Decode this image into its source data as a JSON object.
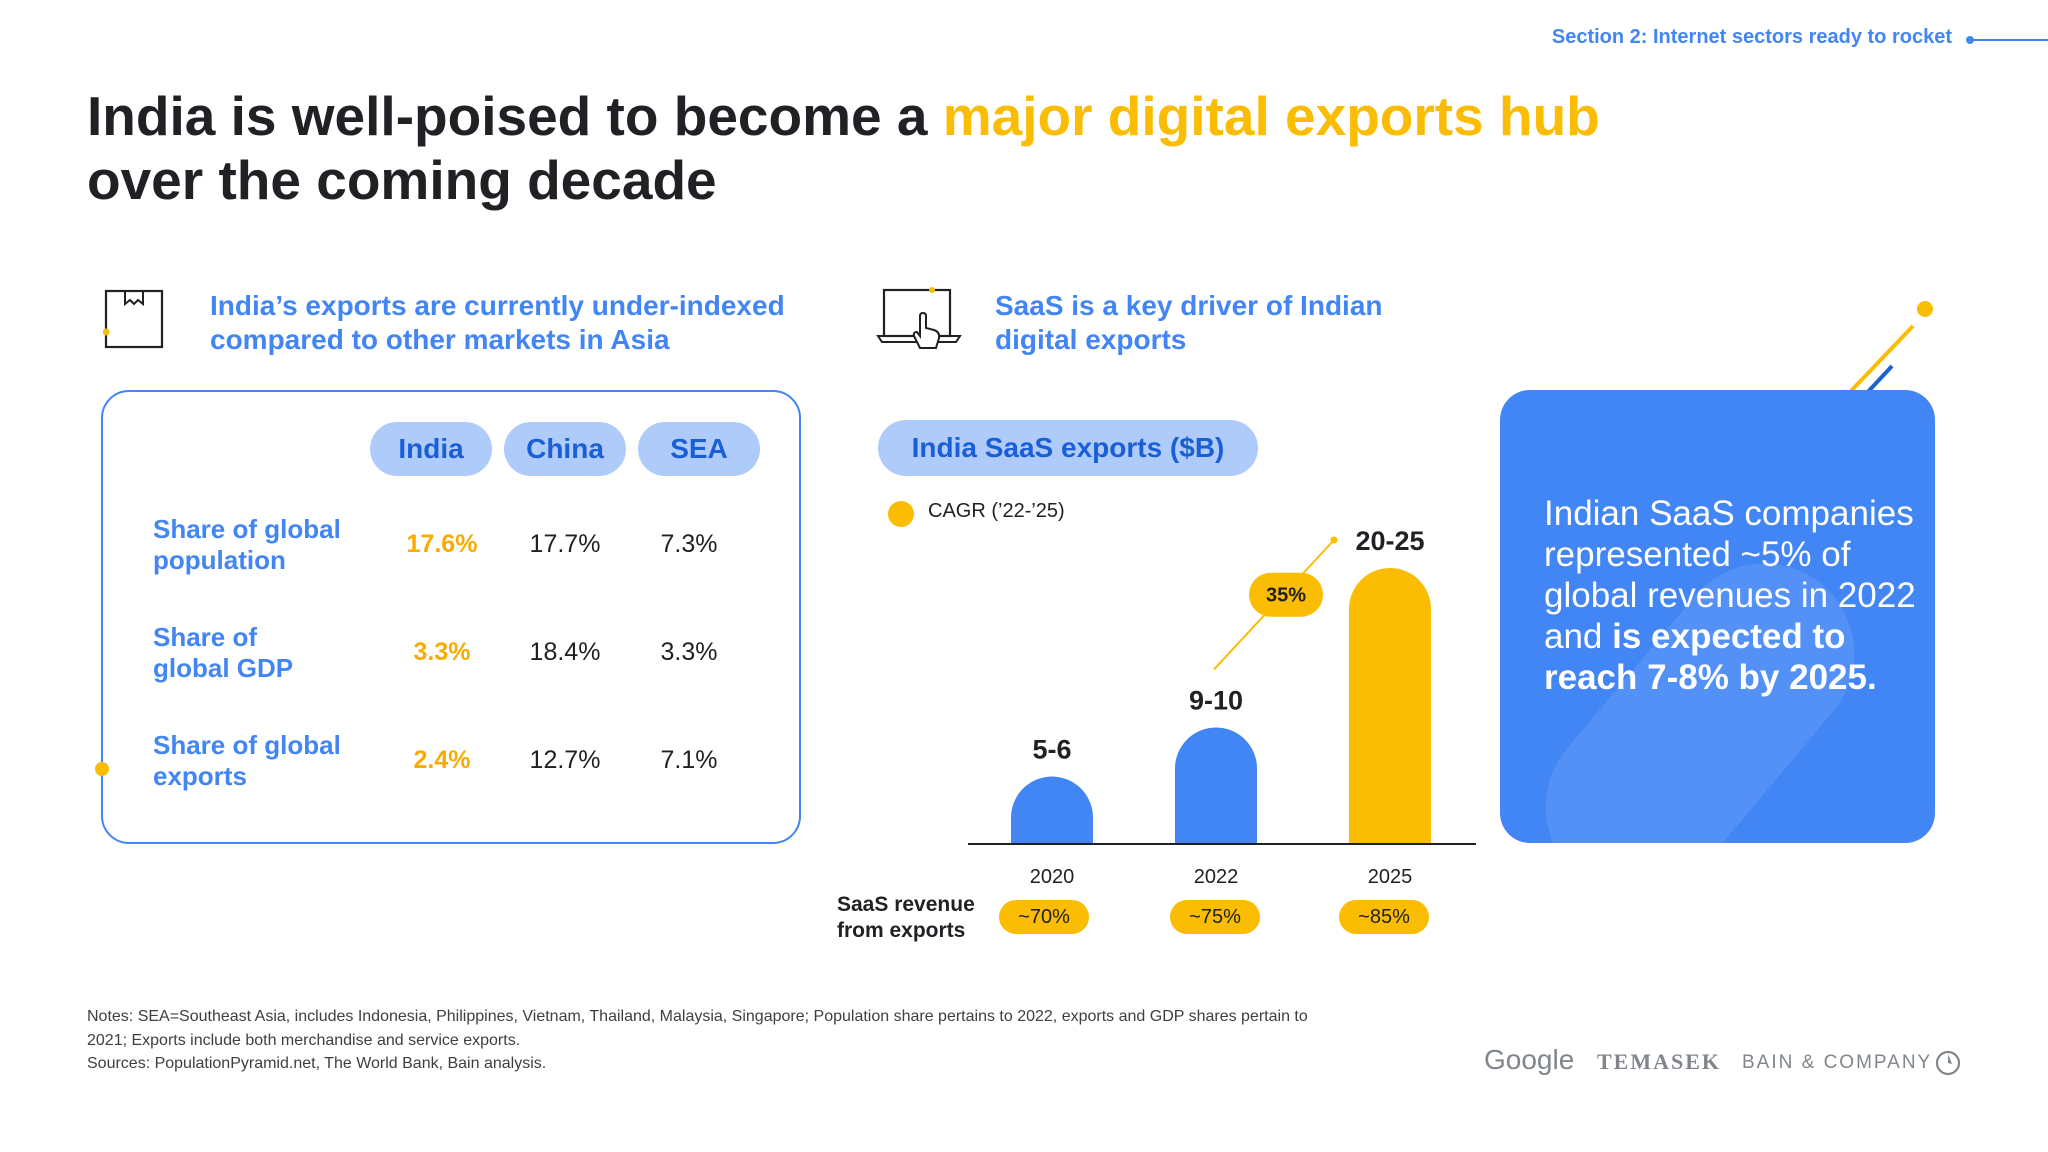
{
  "header": {
    "section": "Section 2: Internet sectors ready to rocket",
    "title_part1": "India is well-poised to become a ",
    "title_highlight": "major digital exports hub",
    "title_part2": "over the coming decade"
  },
  "left_section": {
    "heading": "India’s exports are currently under-indexed compared to other markets in Asia",
    "icon": "package-box-icon",
    "columns": [
      "India",
      "China",
      "SEA"
    ],
    "rows": [
      {
        "label": "Share of global population",
        "values": [
          "17.6%",
          "17.7%",
          "7.3%"
        ]
      },
      {
        "label": "Share of global GDP",
        "values": [
          "3.3%",
          "18.4%",
          "3.3%"
        ]
      },
      {
        "label": "Share of global exports",
        "values": [
          "2.4%",
          "12.7%",
          "7.1%"
        ]
      }
    ]
  },
  "middle_section": {
    "heading": "SaaS is a key driver of Indian digital exports",
    "icon": "laptop-click-icon",
    "revenue_label": "SaaS revenue from exports",
    "revenue_shares": [
      "~70%",
      "~75%",
      "~85%"
    ],
    "cagr_legend": "CAGR (’22-’25)"
  },
  "chart_data": {
    "type": "bar",
    "title": "India SaaS exports ($B)",
    "categories": [
      "2020",
      "2022",
      "2025"
    ],
    "ranges": [
      [
        5,
        6
      ],
      [
        9,
        10
      ],
      [
        20,
        25
      ]
    ],
    "values": [
      5.5,
      9.5,
      22.5
    ],
    "data_labels": [
      "5-6",
      "9-10",
      "20-25"
    ],
    "bar_colors": [
      "#4285f4",
      "#4285f4",
      "#fbbc04"
    ],
    "annotations": [
      {
        "label": "35%",
        "type": "CAGR",
        "from": "2022",
        "to": "2025"
      }
    ],
    "xlabel": "",
    "ylabel": ""
  },
  "callout": {
    "text_regular": "Indian SaaS companies represented ~5% of global revenues in 2022 and ",
    "text_bold": "is expected to reach 7-8% by 2025."
  },
  "footer": {
    "notes": [
      "Notes: SEA=Southeast Asia, includes Indonesia, Philippines, Vietnam, Thailand, Malaysia, Singapore; Population share pertains to 2022, exports and GDP shares pertain to 2021; Exports include both merchandise and service exports.",
      "Sources: PopulationPyramid.net, The World Bank, Bain analysis."
    ],
    "logos": [
      "Google",
      "TEMASEK",
      "BAIN & COMPANY"
    ]
  },
  "colors": {
    "blue": "#4285f4",
    "light_blue": "#aecbfa",
    "yellow": "#fbbc04",
    "dark": "#202124"
  }
}
